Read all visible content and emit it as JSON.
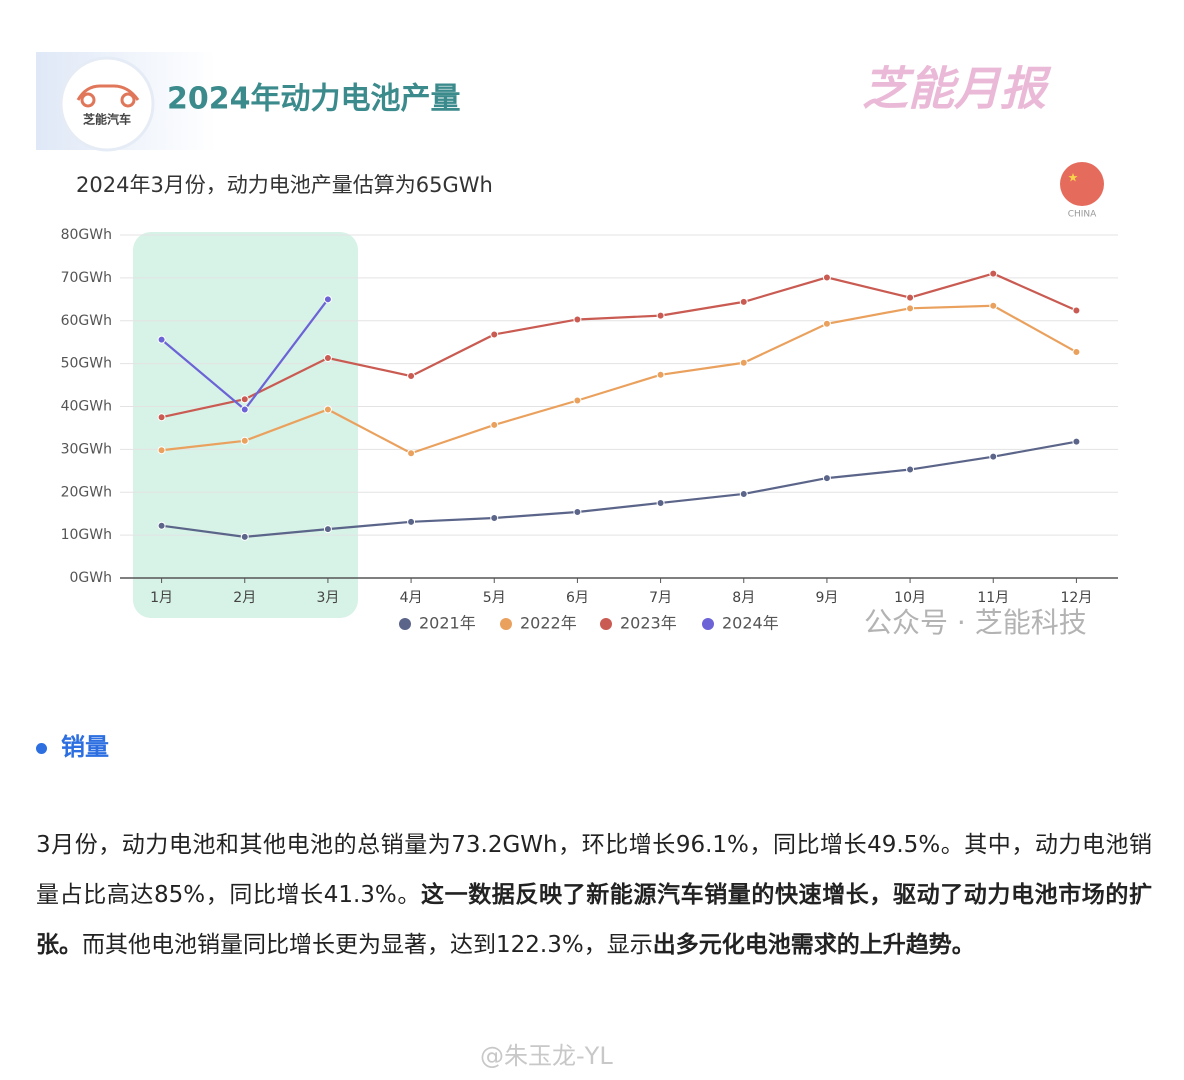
{
  "header": {
    "logo_text": "芝能汽车",
    "title": "2024年动力电池产量",
    "brand": "芝能月报"
  },
  "chart_data": {
    "type": "line",
    "subtitle": "2024年3月份，动力电池产量估算为65GWh",
    "badge": "CHINA",
    "categories": [
      "1月",
      "2月",
      "3月",
      "4月",
      "5月",
      "6月",
      "7月",
      "8月",
      "9月",
      "10月",
      "11月",
      "12月"
    ],
    "series": [
      {
        "name": "2021年",
        "color": "#5b6589",
        "values": [
          12.2,
          9.6,
          11.4,
          13.1,
          14.0,
          15.4,
          17.5,
          19.6,
          23.3,
          25.3,
          28.3,
          31.8
        ]
      },
      {
        "name": "2022年",
        "color": "#eaa15e",
        "values": [
          29.8,
          32.0,
          39.3,
          29.1,
          35.7,
          41.4,
          47.4,
          50.2,
          59.3,
          62.9,
          63.5,
          52.7
        ]
      },
      {
        "name": "2023年",
        "color": "#c95b52",
        "values": [
          37.5,
          41.7,
          51.3,
          47.1,
          56.8,
          60.3,
          61.2,
          64.4,
          70.1,
          65.4,
          71.0,
          62.4
        ]
      },
      {
        "name": "2024年",
        "color": "#6b63d6",
        "values": [
          55.6,
          39.3,
          65.0,
          null,
          null,
          null,
          null,
          null,
          null,
          null,
          null,
          null
        ]
      }
    ],
    "ylim": [
      0,
      80
    ],
    "yticks": [
      {
        "value": 0,
        "label": "0GWh"
      },
      {
        "value": 10,
        "label": "10GWh"
      },
      {
        "value": 20,
        "label": "20GWh"
      },
      {
        "value": 30,
        "label": "30GWh"
      },
      {
        "value": 40,
        "label": "40GWh"
      },
      {
        "value": 50,
        "label": "50GWh"
      },
      {
        "value": 60,
        "label": "60GWh"
      },
      {
        "value": 70,
        "label": "70GWh"
      },
      {
        "value": 80,
        "label": "80GWh"
      }
    ],
    "grid": true,
    "legend": "bottom",
    "watermark": "公众号 · 芝能科技"
  },
  "section": {
    "heading": "销量"
  },
  "paragraph": [
    {
      "text": "3月份，动力电池和其他电池的总销量为73.2GWh，环比增长96.1%，同比增长49.5%。其中，动力电池销量占比高达85%，同比增长41.3%。",
      "bold": false
    },
    {
      "text": "这一数据反映了新能源汽车销量的快速增长，驱动了动力电池市场的扩张。",
      "bold": true
    },
    {
      "text": "而其他电池销量同比增长更为显著，达到122.3%，显示",
      "bold": false
    },
    {
      "text": "出多元化电池需求的上升趋势。",
      "bold": true
    }
  ],
  "footer": {
    "handle": "@朱玉龙-YL"
  }
}
